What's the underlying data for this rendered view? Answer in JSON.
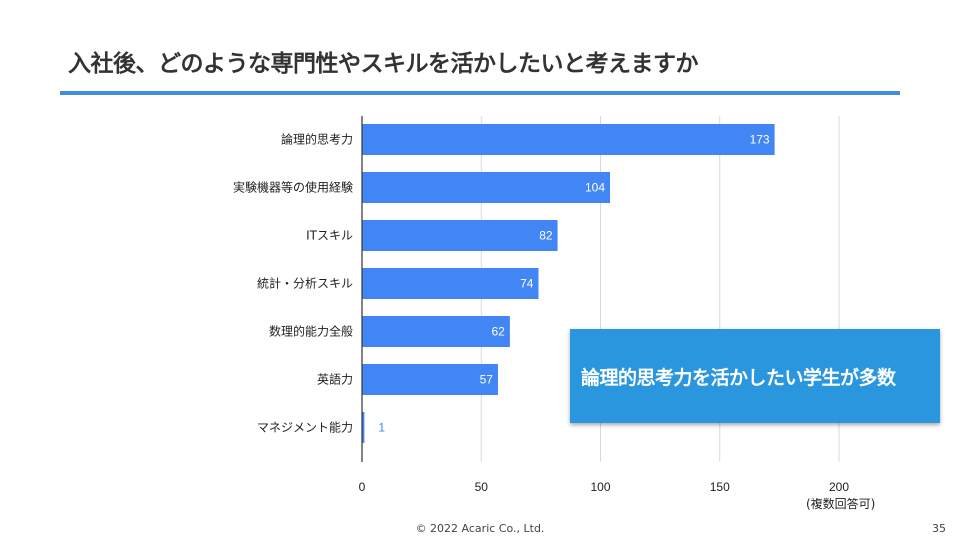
{
  "header": {
    "title": "入社後、どのような専門性やスキルを活かしたいと考えますか"
  },
  "chart_data": {
    "type": "bar",
    "orientation": "horizontal",
    "categories": [
      "論理的思考力",
      "実験機器等の使用経験",
      "ITスキル",
      "統計・分析スキル",
      "数理的能力全般",
      "英語力",
      "マネジメント能力"
    ],
    "values": [
      173,
      104,
      82,
      74,
      62,
      57,
      1
    ],
    "xlim": [
      0,
      250
    ],
    "xticks": [
      0,
      50,
      100,
      150,
      200
    ],
    "grid": true,
    "bar_color": "#4285f4",
    "xlabel": "",
    "ylabel": ""
  },
  "callout": {
    "text": "論理的思考力を活かしたい学生が多数",
    "color": "#2a96dd"
  },
  "note": "(複数回答可)",
  "footer": {
    "copyright": "© 2022 Acaric Co., Ltd.",
    "page": "35"
  }
}
